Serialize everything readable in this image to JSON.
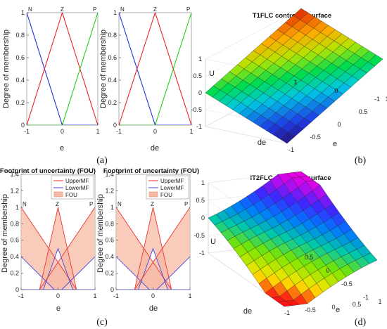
{
  "chart_data": [
    {
      "id": "a1",
      "type": "line",
      "xlabel": "e",
      "ylabel": "Degree of membership",
      "xlim": [
        -1,
        1
      ],
      "ylim": [
        0,
        1
      ],
      "xticks": [
        "-1",
        "0",
        "1"
      ],
      "yticks": [
        "0",
        "0.2",
        "0.4",
        "0.6",
        "0.8",
        "1"
      ],
      "mf_labels": [
        "N",
        "Z",
        "P"
      ],
      "series": [
        {
          "name": "N",
          "color": "#2233dd",
          "x": [
            -1,
            0,
            1
          ],
          "y": [
            1,
            0,
            0
          ]
        },
        {
          "name": "Z",
          "color": "#ee2222",
          "x": [
            -1,
            0,
            1
          ],
          "y": [
            0,
            1,
            0
          ]
        },
        {
          "name": "P",
          "color": "#22cc22",
          "x": [
            -1,
            0,
            1
          ],
          "y": [
            0,
            0,
            1
          ]
        }
      ]
    },
    {
      "id": "a2",
      "type": "line",
      "xlabel": "de",
      "ylabel": "Degree of membership",
      "xlim": [
        -1,
        1
      ],
      "ylim": [
        0,
        1
      ],
      "xticks": [
        "-1",
        "0",
        "1"
      ],
      "yticks": [
        "0",
        "0.2",
        "0.4",
        "0.6",
        "0.8",
        "1"
      ],
      "mf_labels": [
        "N",
        "Z",
        "P"
      ],
      "series": [
        {
          "name": "N",
          "color": "#2233dd",
          "x": [
            -1,
            0,
            1
          ],
          "y": [
            1,
            0,
            0
          ]
        },
        {
          "name": "Z",
          "color": "#ee2222",
          "x": [
            -1,
            0,
            1
          ],
          "y": [
            0,
            1,
            0
          ]
        },
        {
          "name": "P",
          "color": "#22cc22",
          "x": [
            -1,
            0,
            1
          ],
          "y": [
            0,
            0,
            1
          ]
        }
      ]
    },
    {
      "id": "b",
      "type": "surface",
      "title": "T1FLC controller surface",
      "xlabel": "e",
      "ylabel": "de",
      "zlabel": "U",
      "zlim": [
        -1,
        1
      ],
      "zticks": [
        "-1",
        "-0.5",
        "0",
        "0.5",
        "1"
      ],
      "xticks": [
        "-1",
        "-0.5",
        "0",
        "0.5",
        "1"
      ],
      "yticks": [
        "-1",
        "0",
        "1"
      ],
      "surface": "U = (e + de) / 2"
    },
    {
      "id": "c1",
      "type": "area",
      "title": "Footprint of uncertainty (FOU)",
      "xlabel": "e",
      "ylabel": "Degree of membership",
      "xlim": [
        -1,
        1
      ],
      "ylim": [
        0,
        1.4
      ],
      "xticks": [
        "-1",
        "0",
        "1"
      ],
      "yticks": [
        "0",
        "0.2",
        "0.4",
        "0.6",
        "0.8",
        "1",
        "1.2",
        "1.4"
      ],
      "mf_labels": [
        "N",
        "Z",
        "P"
      ],
      "legend": [
        "UpperMF",
        "LowerMF",
        "FOU"
      ],
      "legend_position": "top-right",
      "upper_mf": {
        "N": [
          [
            -1,
            1
          ],
          [
            0.5,
            0
          ]
        ],
        "Z": [
          [
            -0.5,
            0
          ],
          [
            0,
            1
          ],
          [
            0.5,
            0
          ]
        ],
        "P": [
          [
            -0.5,
            0
          ],
          [
            1,
            1
          ]
        ]
      },
      "lower_mf": {
        "N": [
          [
            -1,
            0.4
          ],
          [
            -0.1,
            0
          ]
        ],
        "Z": [
          [
            -0.4,
            0
          ],
          [
            0,
            0.5
          ],
          [
            0.4,
            0
          ]
        ],
        "P": [
          [
            0.1,
            0
          ],
          [
            1,
            0.4
          ]
        ]
      }
    },
    {
      "id": "c2",
      "type": "area",
      "title": "Footprint of uncertainty (FOU)",
      "xlabel": "de",
      "ylabel": "Degree of membership",
      "xlim": [
        -1,
        1
      ],
      "ylim": [
        0,
        1.4
      ],
      "xticks": [
        "-1",
        "0",
        "1"
      ],
      "yticks": [
        "0",
        "0.2",
        "0.4",
        "0.6",
        "0.8",
        "1",
        "1.2",
        "1.4"
      ],
      "mf_labels": [
        "N",
        "Z",
        "P"
      ],
      "legend": [
        "UpperMF",
        "LowerMF",
        "FOU"
      ],
      "legend_position": "top-right",
      "upper_mf": {
        "N": [
          [
            -1,
            1
          ],
          [
            0.5,
            0
          ]
        ],
        "Z": [
          [
            -0.5,
            0
          ],
          [
            0,
            1
          ],
          [
            0.5,
            0
          ]
        ],
        "P": [
          [
            -0.5,
            0
          ],
          [
            1,
            1
          ]
        ]
      },
      "lower_mf": {
        "N": [
          [
            -1,
            0.4
          ],
          [
            -0.1,
            0
          ]
        ],
        "Z": [
          [
            -0.4,
            0
          ],
          [
            0,
            0.5
          ],
          [
            0.4,
            0
          ]
        ],
        "P": [
          [
            0.1,
            0
          ],
          [
            1,
            0.4
          ]
        ]
      }
    },
    {
      "id": "d",
      "type": "surface",
      "title": "IT2FLC controller surface",
      "xlabel": "e",
      "ylabel": "de",
      "zlabel": "U",
      "zlim": [
        -1,
        1
      ],
      "zticks": [
        "-1",
        "-0.5",
        "0",
        "0.5",
        "1"
      ],
      "xticks": [
        "-1",
        "-0.5",
        "0",
        "0.5",
        "1"
      ],
      "yticks": [
        "-1",
        "-0.5",
        "0",
        "0.5"
      ],
      "surface": "nonlinear, flatter near origin"
    }
  ],
  "captions": [
    "(a)",
    "(b)",
    "(c)",
    "(d)"
  ],
  "colors": {
    "upper": "#ee3333",
    "lower": "#4444dd",
    "fou": "#f6b9a4"
  }
}
